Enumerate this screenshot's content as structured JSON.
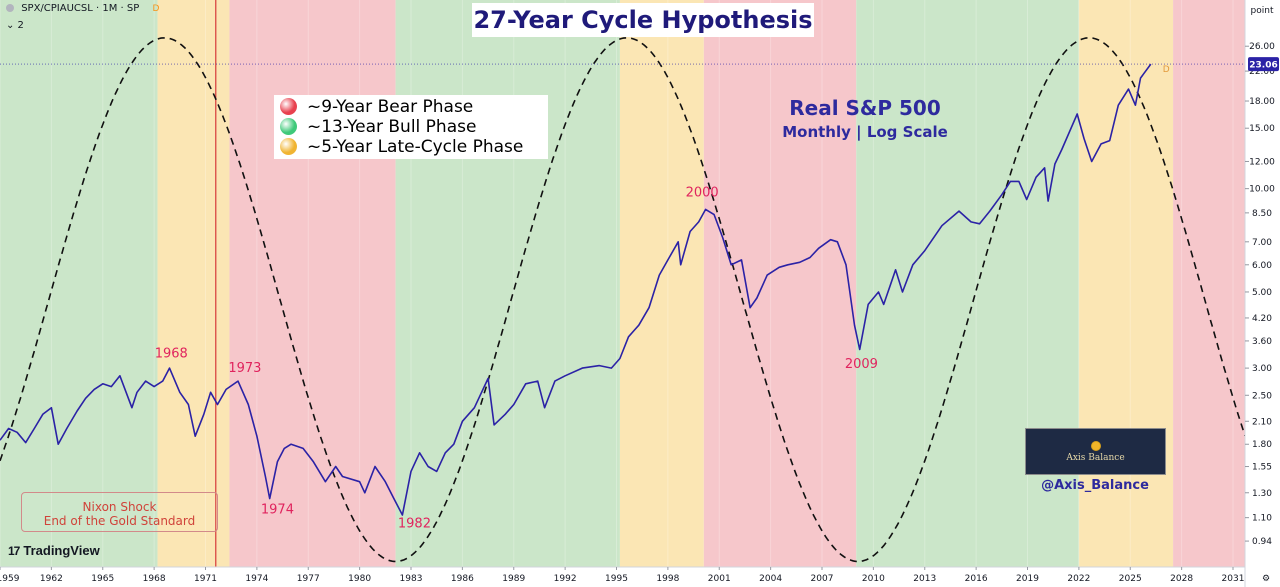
{
  "header": {
    "symbol": "SPX/CPIAUCSL · 1M · SP",
    "badge": "D",
    "sub": "⌄ 2"
  },
  "title": "27-Year Cycle Hypothesis",
  "legend": [
    {
      "label": "~9-Year Bear Phase",
      "color": "#e8414f"
    },
    {
      "label": "~13-Year Bull Phase",
      "color": "#3fc97a"
    },
    {
      "label": "~5-Year Late-Cycle Phase",
      "color": "#f0b432"
    }
  ],
  "subtitle": "Real S&P 500",
  "subtitle2": "Monthly | Log Scale",
  "annotation": {
    "line1": "Nixon Shock",
    "line2": "End of the Gold Standard"
  },
  "watermark": {
    "logo_text": "Axis Balance",
    "handle": "@Axis_Balance"
  },
  "branding": {
    "mark": "17",
    "text": "TradingView"
  },
  "axis": {
    "unit_label": "point",
    "last_value_label": "23.06",
    "series_marker": "D"
  },
  "colors": {
    "bear": "#f6c7cb",
    "bull": "#cbe6c9",
    "late": "#fbe6b4",
    "price": "#2b22a6",
    "cycle": "#111111",
    "nixon_line": "#d63a3a",
    "label": "#e0245e"
  },
  "chart_data": {
    "type": "line",
    "title": "27-Year Cycle Hypothesis",
    "subtitle": "Real S&P 500 — Monthly | Log Scale",
    "scale": "log",
    "xlim": [
      1959,
      2031.7
    ],
    "ylim": [
      0.79,
      31
    ],
    "x_ticks": [
      "1959",
      "1962",
      "1965",
      "1968",
      "1971",
      "1974",
      "1977",
      "1980",
      "1983",
      "1986",
      "1989",
      "1992",
      "1995",
      "1998",
      "2001",
      "2004",
      "2007",
      "2010",
      "2013",
      "2016",
      "2019",
      "2022",
      "2025",
      "2028",
      "2031"
    ],
    "y_ticks": [
      "26.00",
      "22.00",
      "18.00",
      "15.00",
      "12.00",
      "10.00",
      "8.50",
      "7.00",
      "6.00",
      "5.00",
      "4.20",
      "3.60",
      "3.00",
      "2.50",
      "2.10",
      "1.80",
      "1.55",
      "1.30",
      "1.10",
      "0.94",
      "0.79"
    ],
    "phases": [
      {
        "phase": "bull",
        "start": 1959,
        "end": 1968.2
      },
      {
        "phase": "late",
        "start": 1968.2,
        "end": 1972.4
      },
      {
        "phase": "bear",
        "start": 1972.4,
        "end": 1982.1
      },
      {
        "phase": "bull",
        "start": 1982.1,
        "end": 1995.2
      },
      {
        "phase": "late",
        "start": 1995.2,
        "end": 2000.1
      },
      {
        "phase": "bear",
        "start": 2000.1,
        "end": 2009.0
      },
      {
        "phase": "bull",
        "start": 2009.0,
        "end": 2022.0
      },
      {
        "phase": "late",
        "start": 2022.0,
        "end": 2027.5
      },
      {
        "phase": "bear",
        "start": 2027.5,
        "end": 2031.7
      }
    ],
    "nixon_shock": 1971.6,
    "cycle": {
      "period_years": 27,
      "peak_year": 1968.6,
      "max": 27.5,
      "min": 0.82
    },
    "series": [
      {
        "name": "SPX/CPIAUCSL",
        "points": [
          [
            1959.0,
            1.85
          ],
          [
            1959.5,
            2.0
          ],
          [
            1960.0,
            1.95
          ],
          [
            1960.5,
            1.82
          ],
          [
            1961.0,
            2.0
          ],
          [
            1961.5,
            2.2
          ],
          [
            1962.0,
            2.3
          ],
          [
            1962.4,
            1.8
          ],
          [
            1962.9,
            2.0
          ],
          [
            1963.5,
            2.25
          ],
          [
            1964.0,
            2.45
          ],
          [
            1964.5,
            2.6
          ],
          [
            1965.0,
            2.7
          ],
          [
            1965.5,
            2.65
          ],
          [
            1966.0,
            2.85
          ],
          [
            1966.7,
            2.3
          ],
          [
            1967.0,
            2.55
          ],
          [
            1967.5,
            2.75
          ],
          [
            1968.0,
            2.65
          ],
          [
            1968.5,
            2.75
          ],
          [
            1968.9,
            3.0
          ],
          [
            1969.5,
            2.55
          ],
          [
            1970.0,
            2.35
          ],
          [
            1970.4,
            1.9
          ],
          [
            1970.9,
            2.2
          ],
          [
            1971.3,
            2.55
          ],
          [
            1971.7,
            2.35
          ],
          [
            1972.2,
            2.6
          ],
          [
            1972.9,
            2.75
          ],
          [
            1973.5,
            2.35
          ],
          [
            1974.0,
            1.9
          ],
          [
            1974.5,
            1.45
          ],
          [
            1974.75,
            1.25
          ],
          [
            1975.2,
            1.6
          ],
          [
            1975.6,
            1.75
          ],
          [
            1976.0,
            1.8
          ],
          [
            1976.7,
            1.75
          ],
          [
            1977.3,
            1.6
          ],
          [
            1978.0,
            1.4
          ],
          [
            1978.6,
            1.55
          ],
          [
            1979.0,
            1.45
          ],
          [
            1980.0,
            1.4
          ],
          [
            1980.3,
            1.3
          ],
          [
            1980.9,
            1.55
          ],
          [
            1981.5,
            1.4
          ],
          [
            1982.0,
            1.25
          ],
          [
            1982.5,
            1.12
          ],
          [
            1983.0,
            1.5
          ],
          [
            1983.5,
            1.7
          ],
          [
            1984.0,
            1.55
          ],
          [
            1984.5,
            1.5
          ],
          [
            1985.0,
            1.7
          ],
          [
            1985.5,
            1.8
          ],
          [
            1986.0,
            2.1
          ],
          [
            1986.7,
            2.3
          ],
          [
            1987.5,
            2.8
          ],
          [
            1987.85,
            2.05
          ],
          [
            1988.5,
            2.2
          ],
          [
            1989.0,
            2.35
          ],
          [
            1989.7,
            2.7
          ],
          [
            1990.4,
            2.75
          ],
          [
            1990.8,
            2.3
          ],
          [
            1991.4,
            2.75
          ],
          [
            1992.0,
            2.85
          ],
          [
            1993.0,
            3.0
          ],
          [
            1994.0,
            3.05
          ],
          [
            1994.7,
            3.0
          ],
          [
            1995.2,
            3.2
          ],
          [
            1995.7,
            3.7
          ],
          [
            1996.3,
            4.0
          ],
          [
            1996.9,
            4.5
          ],
          [
            1997.5,
            5.6
          ],
          [
            1998.0,
            6.2
          ],
          [
            1998.6,
            7.0
          ],
          [
            1998.75,
            6.0
          ],
          [
            1999.3,
            7.5
          ],
          [
            1999.8,
            8.0
          ],
          [
            2000.2,
            8.7
          ],
          [
            2000.7,
            8.4
          ],
          [
            2001.2,
            7.2
          ],
          [
            2001.7,
            6.0
          ],
          [
            2002.3,
            6.2
          ],
          [
            2002.8,
            4.5
          ],
          [
            2003.2,
            4.8
          ],
          [
            2003.8,
            5.6
          ],
          [
            2004.5,
            5.9
          ],
          [
            2005.0,
            6.0
          ],
          [
            2005.7,
            6.1
          ],
          [
            2006.3,
            6.3
          ],
          [
            2006.8,
            6.7
          ],
          [
            2007.5,
            7.1
          ],
          [
            2007.9,
            7.0
          ],
          [
            2008.4,
            6.0
          ],
          [
            2008.9,
            4.0
          ],
          [
            2009.2,
            3.4
          ],
          [
            2009.7,
            4.6
          ],
          [
            2010.3,
            5.0
          ],
          [
            2010.6,
            4.6
          ],
          [
            2011.3,
            5.8
          ],
          [
            2011.7,
            5.0
          ],
          [
            2012.3,
            6.0
          ],
          [
            2013.0,
            6.6
          ],
          [
            2014.0,
            7.8
          ],
          [
            2015.0,
            8.6
          ],
          [
            2015.7,
            8.0
          ],
          [
            2016.2,
            7.9
          ],
          [
            2016.8,
            8.6
          ],
          [
            2017.5,
            9.6
          ],
          [
            2018.0,
            10.5
          ],
          [
            2018.5,
            10.5
          ],
          [
            2018.95,
            9.3
          ],
          [
            2019.5,
            10.8
          ],
          [
            2020.0,
            11.5
          ],
          [
            2020.2,
            9.2
          ],
          [
            2020.6,
            11.8
          ],
          [
            2021.0,
            13.0
          ],
          [
            2021.9,
            16.5
          ],
          [
            2022.3,
            14.0
          ],
          [
            2022.75,
            12.0
          ],
          [
            2023.3,
            13.5
          ],
          [
            2023.8,
            13.8
          ],
          [
            2024.3,
            17.5
          ],
          [
            2024.9,
            19.5
          ],
          [
            2025.3,
            17.5
          ],
          [
            2025.6,
            21.0
          ],
          [
            2026.2,
            23.06
          ]
        ]
      }
    ],
    "labels": [
      {
        "text": "1968",
        "x": 1969.0,
        "y": 3.22
      },
      {
        "text": "1973",
        "x": 1973.3,
        "y": 2.92
      },
      {
        "text": "1974",
        "x": 1975.2,
        "y": 1.13
      },
      {
        "text": "1982",
        "x": 1983.2,
        "y": 1.03
      },
      {
        "text": "2000",
        "x": 2000.0,
        "y": 9.5
      },
      {
        "text": "2009",
        "x": 2009.3,
        "y": 3.0
      }
    ]
  }
}
